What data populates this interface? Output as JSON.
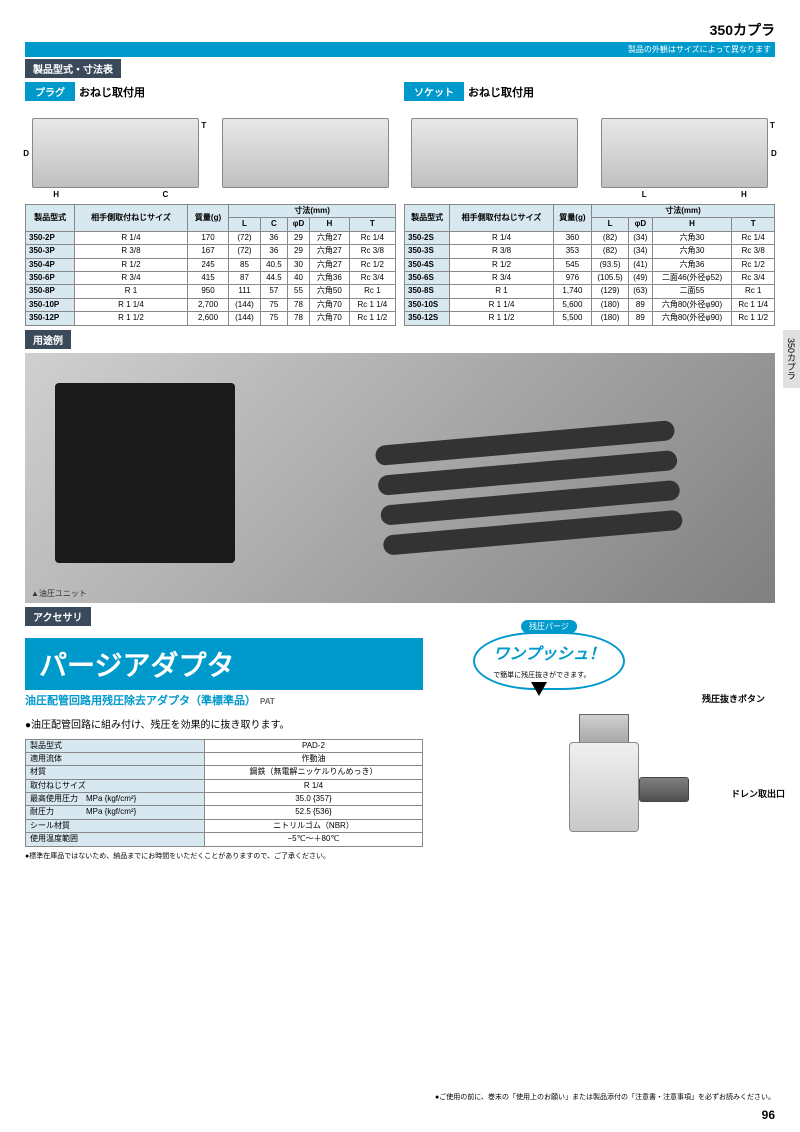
{
  "header": {
    "title": "350カプラ",
    "bar": "製品の外観はサイズによって異なります"
  },
  "section_label": "製品型式・寸法表",
  "plug": {
    "tag": "プラグ",
    "subtitle": "おねじ取付用",
    "headers": [
      "製品型式",
      "相手側取付ねじサイズ",
      "質量(g)",
      "L",
      "C",
      "φD",
      "H",
      "T"
    ],
    "dim_header": "寸法(mm)",
    "rows": [
      [
        "350-2P",
        "R 1/4",
        "170",
        "(72)",
        "36",
        "29",
        "六角27",
        "Rc 1/4"
      ],
      [
        "350-3P",
        "R 3/8",
        "167",
        "(72)",
        "36",
        "29",
        "六角27",
        "Rc 3/8"
      ],
      [
        "350-4P",
        "R 1/2",
        "245",
        "85",
        "40.5",
        "30",
        "六角27",
        "Rc 1/2"
      ],
      [
        "350-6P",
        "R 3/4",
        "415",
        "87",
        "44.5",
        "40",
        "六角36",
        "Rc 3/4"
      ],
      [
        "350-8P",
        "R 1",
        "950",
        "111",
        "57",
        "55",
        "六角50",
        "Rc 1"
      ],
      [
        "350-10P",
        "R 1 1/4",
        "2,700",
        "(144)",
        "75",
        "78",
        "六角70",
        "Rc 1 1/4"
      ],
      [
        "350-12P",
        "R 1 1/2",
        "2,600",
        "(144)",
        "75",
        "78",
        "六角70",
        "Rc 1 1/2"
      ]
    ]
  },
  "socket": {
    "tag": "ソケット",
    "subtitle": "おねじ取付用",
    "headers": [
      "製品型式",
      "相手側取付ねじサイズ",
      "質量(g)",
      "L",
      "φD",
      "H",
      "T"
    ],
    "dim_header": "寸法(mm)",
    "rows": [
      [
        "350-2S",
        "R 1/4",
        "360",
        "(82)",
        "(34)",
        "六角30",
        "Rc 1/4"
      ],
      [
        "350-3S",
        "R 3/8",
        "353",
        "(82)",
        "(34)",
        "六角30",
        "Rc 3/8"
      ],
      [
        "350-4S",
        "R 1/2",
        "545",
        "(93.5)",
        "(41)",
        "六角36",
        "Rc 1/2"
      ],
      [
        "350-6S",
        "R 3/4",
        "976",
        "(105.5)",
        "(49)",
        "二面46(外径φ52)",
        "Rc 3/4"
      ],
      [
        "350-8S",
        "R 1",
        "1,740",
        "(129)",
        "(63)",
        "二面55",
        "Rc 1"
      ],
      [
        "350-10S",
        "R 1 1/4",
        "5,600",
        "(180)",
        "89",
        "六角80(外径φ90)",
        "Rc 1 1/4"
      ],
      [
        "350-12S",
        "R 1 1/2",
        "5,500",
        "(180)",
        "89",
        "六角80(外径φ90)",
        "Rc 1 1/2"
      ]
    ]
  },
  "usage_label": "用途例",
  "photo_caption": "▲油圧ユニット",
  "accessory_label": "アクセサリ",
  "accessory": {
    "big_title": "パージアダプタ",
    "subtitle": "油圧配管回路用残圧除去アダプタ（準標準品）",
    "pat": "PAT",
    "desc": "●油圧配管回路に組み付け、残圧を効果的に抜き取ります。",
    "spec": [
      [
        "製品型式",
        "PAD-2"
      ],
      [
        "適用流体",
        "作動油"
      ],
      [
        "材質",
        "鋼鉄（無電解ニッケルりんめっき）"
      ],
      [
        "取付ねじサイズ",
        "R 1/4"
      ],
      [
        "最高使用圧力　MPa {kgf/cm²}",
        "35.0 {357}"
      ],
      [
        "耐圧力　　　　MPa {kgf/cm²}",
        "52.5 {536}"
      ],
      [
        "シール材質",
        "ニトリルゴム（NBR）"
      ],
      [
        "使用温度範囲",
        "−5℃〜＋80℃"
      ]
    ],
    "note": "●標準在庫品ではないため、納品までにお時間をいただくことがありますので、ご了承ください。",
    "bubble_top": "残圧パージ",
    "bubble_main": "ワンプッシュ！",
    "bubble_sub": "で簡単に残圧抜きができます。",
    "ptr1": "残圧抜きボタン",
    "ptr2": "ドレン取出口"
  },
  "side_tab": "350カプラ",
  "footer_note": "●ご使用の前に、巻末の「使用上のお願い」または製品添付の「注意書・注意事項」を必ずお読みください。",
  "page_num": "96"
}
